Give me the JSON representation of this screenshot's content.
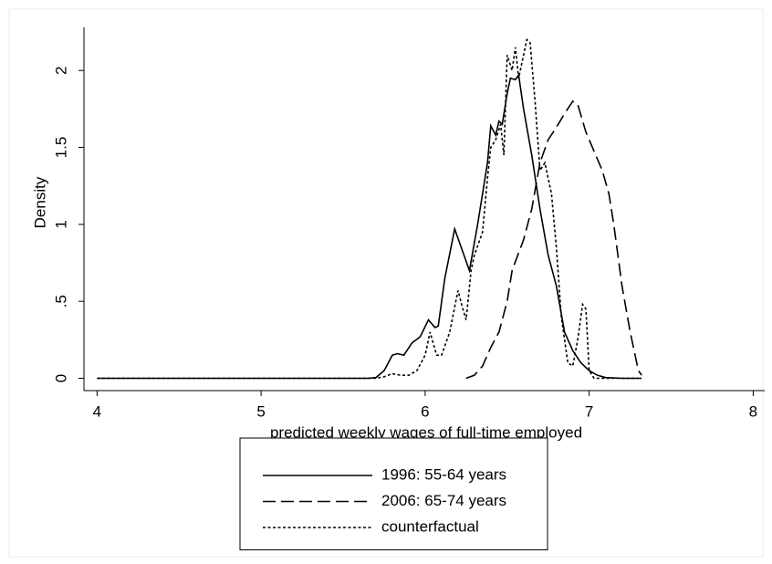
{
  "chart_data": {
    "type": "line",
    "x_label": "predicted weekly wages of full-time employed",
    "y_label": "Density",
    "xlim": [
      3.92,
      8.07
    ],
    "ylim": [
      -0.08,
      2.28
    ],
    "xticks": [
      4,
      5,
      6,
      7,
      8
    ],
    "yticks": [
      0,
      {
        "value": 0.5,
        "label": ".5"
      },
      1,
      1.5,
      2
    ],
    "legend": "bottom",
    "series": [
      {
        "name": "1996: 55-64 years",
        "color": "#000000",
        "line_style": "solid",
        "x": [
          4,
          5.65,
          5.7,
          5.75,
          5.8,
          5.83,
          5.87,
          5.92,
          5.97,
          6.02,
          6.06,
          6.08,
          6.12,
          6.18,
          6.22,
          6.27,
          6.32,
          6.38,
          6.4,
          6.43,
          6.45,
          6.47,
          6.5,
          6.52,
          6.55,
          6.57,
          6.6,
          6.65,
          6.7,
          6.75,
          6.8,
          6.85,
          6.9,
          6.95,
          7.0,
          7.05,
          7.1,
          7.2,
          7.32
        ],
        "values": [
          0,
          0,
          0.005,
          0.05,
          0.15,
          0.16,
          0.15,
          0.23,
          0.27,
          0.38,
          0.33,
          0.34,
          0.65,
          0.97,
          0.85,
          0.7,
          1.0,
          1.4,
          1.64,
          1.58,
          1.67,
          1.65,
          1.85,
          1.95,
          1.94,
          1.97,
          1.75,
          1.45,
          1.1,
          0.8,
          0.6,
          0.3,
          0.18,
          0.1,
          0.05,
          0.02,
          0.005,
          0,
          0
        ]
      },
      {
        "name": "2006: 65-74 years",
        "color": "#000000",
        "line_style": "long-dash",
        "x": [
          6.25,
          6.3,
          6.35,
          6.4,
          6.45,
          6.5,
          6.53,
          6.6,
          6.65,
          6.7,
          6.75,
          6.8,
          6.85,
          6.9,
          6.93,
          6.98,
          7.02,
          7.08,
          7.12,
          7.15,
          7.2,
          7.25,
          7.3,
          7.32
        ],
        "values": [
          0,
          0.02,
          0.08,
          0.2,
          0.3,
          0.5,
          0.7,
          0.9,
          1.1,
          1.4,
          1.55,
          1.63,
          1.72,
          1.8,
          1.78,
          1.6,
          1.5,
          1.35,
          1.2,
          1.0,
          0.6,
          0.3,
          0.05,
          0.02
        ]
      },
      {
        "name": "counterfactual",
        "color": "#000000",
        "line_style": "short-dash",
        "x": [
          4,
          5.7,
          5.75,
          5.8,
          5.85,
          5.9,
          5.95,
          6.0,
          6.03,
          6.07,
          6.1,
          6.15,
          6.2,
          6.23,
          6.25,
          6.28,
          6.3,
          6.35,
          6.38,
          6.4,
          6.43,
          6.46,
          6.48,
          6.5,
          6.53,
          6.55,
          6.57,
          6.6,
          6.62,
          6.64,
          6.67,
          6.7,
          6.73,
          6.77,
          6.8,
          6.83,
          6.87,
          6.9,
          6.93,
          6.96,
          6.98,
          7.0,
          7.03,
          7.1,
          7.3
        ],
        "values": [
          0,
          0,
          0.01,
          0.03,
          0.02,
          0.02,
          0.05,
          0.15,
          0.3,
          0.15,
          0.15,
          0.3,
          0.57,
          0.45,
          0.38,
          0.7,
          0.8,
          0.95,
          1.3,
          1.5,
          1.55,
          1.65,
          1.45,
          2.1,
          2.0,
          2.15,
          1.95,
          2.1,
          2.2,
          2.18,
          1.8,
          1.35,
          1.4,
          1.2,
          0.85,
          0.4,
          0.1,
          0.08,
          0.25,
          0.48,
          0.45,
          0.05,
          0,
          0,
          0
        ]
      }
    ]
  }
}
